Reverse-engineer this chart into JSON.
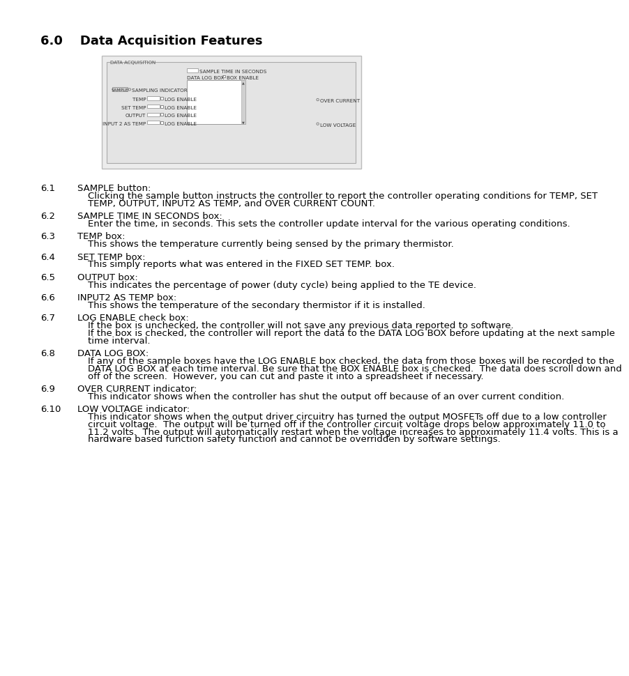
{
  "title": "6.0    Data Acquisition Features",
  "title_fontsize": 13,
  "background_color": "#ffffff",
  "text_color": "#000000",
  "sections": [
    {
      "num": "6.1",
      "heading": "SAMPLE button:",
      "body": "Clicking the sample button instructs the controller to report the controller operating conditions for TEMP, SET\nTEMP, OUTPUT, INPUT2 AS TEMP, and OVER CURRENT COUNT."
    },
    {
      "num": "6.2",
      "heading": "SAMPLE TIME IN SECONDS box:",
      "body": "Enter the time, in seconds. This sets the controller update interval for the various operating conditions."
    },
    {
      "num": "6.3",
      "heading": "TEMP box:",
      "body": "This shows the temperature currently being sensed by the primary thermistor."
    },
    {
      "num": "6.4",
      "heading": "SET TEMP box:",
      "body": "This simply reports what was entered in the FIXED SET TEMP. box."
    },
    {
      "num": "6.5",
      "heading": "OUTPUT box:",
      "body": "This indicates the percentage of power (duty cycle) being applied to the TE device."
    },
    {
      "num": "6.6",
      "heading": "INPUT2 AS TEMP box:",
      "body": "This shows the temperature of the secondary thermistor if it is installed."
    },
    {
      "num": "6.7",
      "heading": "LOG ENABLE check box:",
      "body": "If the box is unchecked, the controller will not save any previous data reported to software.\nIf the box is checked, the controller will report the data to the DATA LOG BOX before updating at the next sample\ntime interval."
    },
    {
      "num": "6.8",
      "heading": "DATA LOG BOX:",
      "body": "If any of the sample boxes have the LOG ENABLE box checked, the data from those boxes will be recorded to the\nDATA LOG BOX at each time interval. Be sure that the BOX ENABLE box is checked.  The data does scroll down and\noff of the screen.  However, you can cut and paste it into a spreadsheet if necessary."
    },
    {
      "num": "6.9",
      "heading": "OVER CURRENT indicator:",
      "body": "This indicator shows when the controller has shut the output off because of an over current condition."
    },
    {
      "num": "6.10",
      "heading": "LOW VOLTAGE indicator:",
      "body": "This indicator shows when the output driver circuitry has turned the output MOSFETs off due to a low controller\ncircuit voltage.  The output will be turned off if the controller circuit voltage drops below approximately 11.0 to\n11.2 volts.  The output will automatically restart when the voltage increases to approximately 11.4 volts. This is a\nhardware based function safety function and cannot be overridden by software settings."
    }
  ]
}
